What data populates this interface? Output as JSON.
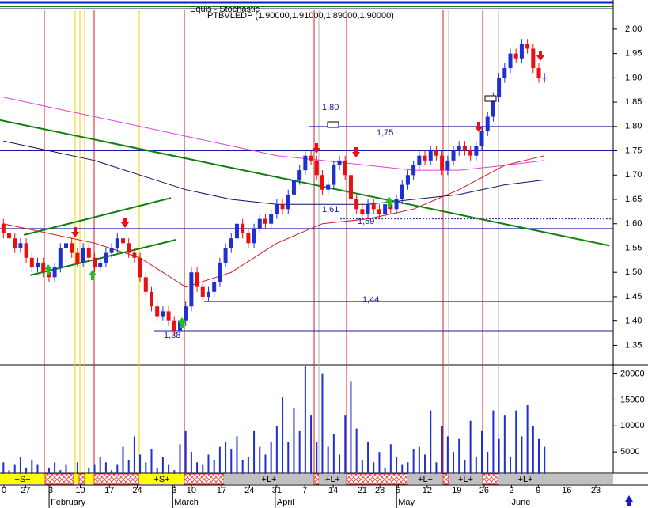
{
  "chart_data": {
    "type": "candlestick",
    "header": "Equis - Stochastic",
    "subtitle": "PTBVLEDP (1.90000,1.91000,1.89000,1.90000)",
    "xlim": [
      -0.6,
      106.5
    ],
    "ylim": [
      1.31,
      2.06
    ],
    "yticks": [
      {
        "value": 2.0,
        "label": "2.00"
      },
      1.95,
      {
        "value": 1.9,
        "label": "1.90"
      },
      1.85,
      {
        "value": 1.8,
        "label": "1.80"
      },
      1.75,
      {
        "value": 1.7,
        "label": "1.70"
      },
      1.65,
      {
        "value": 1.6,
        "label": "1.60"
      },
      1.55,
      {
        "value": 1.5,
        "label": "1.50"
      },
      1.45,
      {
        "value": 1.4,
        "label": "1.40"
      },
      1.35
    ],
    "open": [
      1.6,
      1.58,
      1.57,
      1.55,
      1.56,
      1.53,
      1.51,
      1.52,
      1.5,
      1.49,
      1.51,
      1.55,
      1.56,
      1.54,
      1.52,
      1.55,
      1.53,
      1.51,
      1.52,
      1.54,
      1.55,
      1.57,
      1.56,
      1.54,
      1.53,
      1.49,
      1.46,
      1.43,
      1.41,
      1.42,
      1.4,
      1.38,
      1.4,
      1.43,
      1.5,
      1.47,
      1.45,
      1.46,
      1.48,
      1.52,
      1.55,
      1.57,
      1.6,
      1.58,
      1.56,
      1.59,
      1.61,
      1.6,
      1.62,
      1.64,
      1.63,
      1.66,
      1.69,
      1.71,
      1.74,
      1.73,
      1.7,
      1.67,
      1.68,
      1.72,
      1.73,
      1.7,
      1.65,
      1.63,
      1.62,
      1.64,
      1.63,
      1.62,
      1.64,
      1.63,
      1.65,
      1.68,
      1.7,
      1.72,
      1.74,
      1.73,
      1.75,
      1.74,
      1.71,
      1.73,
      1.75,
      1.76,
      1.75,
      1.74,
      1.76,
      1.79,
      1.82,
      1.86,
      1.9,
      1.92,
      1.95,
      1.94,
      1.97,
      1.96,
      1.92,
      1.9
    ],
    "high": [
      1.61,
      1.59,
      1.58,
      1.57,
      1.57,
      1.54,
      1.53,
      1.53,
      1.51,
      1.52,
      1.56,
      1.57,
      1.57,
      1.55,
      1.56,
      1.56,
      1.54,
      1.53,
      1.55,
      1.56,
      1.58,
      1.58,
      1.57,
      1.55,
      1.54,
      1.5,
      1.47,
      1.44,
      1.43,
      1.43,
      1.41,
      1.41,
      1.44,
      1.51,
      1.51,
      1.48,
      1.47,
      1.49,
      1.53,
      1.56,
      1.58,
      1.61,
      1.61,
      1.59,
      1.6,
      1.62,
      1.62,
      1.63,
      1.65,
      1.65,
      1.67,
      1.7,
      1.72,
      1.75,
      1.75,
      1.74,
      1.71,
      1.69,
      1.73,
      1.74,
      1.74,
      1.71,
      1.66,
      1.64,
      1.65,
      1.65,
      1.64,
      1.65,
      1.65,
      1.66,
      1.69,
      1.71,
      1.73,
      1.75,
      1.75,
      1.76,
      1.76,
      1.75,
      1.74,
      1.76,
      1.77,
      1.77,
      1.76,
      1.77,
      1.8,
      1.83,
      1.87,
      1.91,
      1.93,
      1.96,
      1.96,
      1.98,
      1.98,
      1.97,
      1.93,
      1.91
    ],
    "low": [
      1.57,
      1.56,
      1.54,
      1.54,
      1.52,
      1.5,
      1.5,
      1.49,
      1.48,
      1.48,
      1.5,
      1.54,
      1.53,
      1.51,
      1.51,
      1.52,
      1.5,
      1.5,
      1.51,
      1.53,
      1.54,
      1.55,
      1.53,
      1.52,
      1.48,
      1.45,
      1.42,
      1.4,
      1.4,
      1.39,
      1.37,
      1.37,
      1.39,
      1.42,
      1.46,
      1.44,
      1.44,
      1.45,
      1.47,
      1.51,
      1.54,
      1.56,
      1.57,
      1.55,
      1.55,
      1.58,
      1.59,
      1.59,
      1.61,
      1.62,
      1.62,
      1.65,
      1.68,
      1.7,
      1.72,
      1.69,
      1.66,
      1.66,
      1.67,
      1.71,
      1.69,
      1.64,
      1.62,
      1.61,
      1.61,
      1.62,
      1.61,
      1.61,
      1.62,
      1.62,
      1.64,
      1.67,
      1.69,
      1.71,
      1.72,
      1.72,
      1.73,
      1.7,
      1.7,
      1.72,
      1.74,
      1.74,
      1.73,
      1.73,
      1.75,
      1.78,
      1.81,
      1.85,
      1.89,
      1.91,
      1.93,
      1.93,
      1.95,
      1.91,
      1.89,
      1.89
    ],
    "close": [
      1.58,
      1.57,
      1.55,
      1.56,
      1.53,
      1.51,
      1.52,
      1.5,
      1.49,
      1.51,
      1.55,
      1.56,
      1.54,
      1.52,
      1.55,
      1.53,
      1.51,
      1.52,
      1.54,
      1.55,
      1.57,
      1.56,
      1.54,
      1.53,
      1.49,
      1.46,
      1.43,
      1.41,
      1.42,
      1.4,
      1.38,
      1.4,
      1.43,
      1.5,
      1.47,
      1.45,
      1.46,
      1.48,
      1.52,
      1.55,
      1.57,
      1.6,
      1.58,
      1.56,
      1.59,
      1.61,
      1.6,
      1.62,
      1.64,
      1.63,
      1.66,
      1.69,
      1.71,
      1.74,
      1.73,
      1.7,
      1.67,
      1.68,
      1.72,
      1.73,
      1.7,
      1.65,
      1.63,
      1.62,
      1.64,
      1.63,
      1.62,
      1.64,
      1.63,
      1.65,
      1.68,
      1.7,
      1.72,
      1.74,
      1.73,
      1.75,
      1.74,
      1.71,
      1.73,
      1.75,
      1.76,
      1.75,
      1.74,
      1.76,
      1.79,
      1.82,
      1.86,
      1.9,
      1.92,
      1.95,
      1.94,
      1.97,
      1.96,
      1.92,
      1.9,
      1.9
    ],
    "up_color": "#1f2fd0",
    "down_color": "#e81010",
    "moving_averages": [
      {
        "color": "#e040e0",
        "x": [
          0,
          8,
          16,
          24,
          32,
          40,
          48,
          56,
          64,
          72,
          80,
          88,
          95
        ],
        "values": [
          1.86,
          1.84,
          1.82,
          1.8,
          1.78,
          1.76,
          1.74,
          1.73,
          1.72,
          1.71,
          1.71,
          1.72,
          1.73
        ]
      },
      {
        "color": "#101060",
        "x": [
          0,
          8,
          16,
          24,
          32,
          40,
          48,
          56,
          64,
          72,
          80,
          88,
          95
        ],
        "values": [
          1.77,
          1.75,
          1.73,
          1.7,
          1.67,
          1.65,
          1.64,
          1.64,
          1.64,
          1.65,
          1.66,
          1.68,
          1.69
        ]
      },
      {
        "color": "#d01818",
        "x": [
          0,
          8,
          16,
          24,
          32,
          40,
          48,
          56,
          64,
          72,
          80,
          88,
          95
        ],
        "values": [
          1.6,
          1.58,
          1.56,
          1.53,
          1.47,
          1.5,
          1.56,
          1.6,
          1.61,
          1.63,
          1.67,
          1.72,
          1.74
        ]
      }
    ],
    "trendlines": [
      {
        "color": "#108010",
        "x": [
          -0.6,
          106.4
        ],
        "values": [
          1.813,
          1.555
        ]
      },
      {
        "color": "#108010",
        "x": [
          3.6,
          29.4
        ],
        "values": [
          1.577,
          1.653
        ]
      },
      {
        "color": "#108010",
        "x": [
          4.7,
          30.3
        ],
        "values": [
          1.494,
          1.567
        ]
      }
    ],
    "levels": [
      {
        "value": 1.8,
        "label": "1,80"
      },
      {
        "value": 1.75,
        "label": "1,75"
      },
      {
        "value": 1.61,
        "label": "1,61"
      },
      {
        "value": 1.59,
        "label": "1,59"
      },
      {
        "value": 1.44,
        "label": "1,44"
      },
      {
        "value": 1.38,
        "label": "1,38"
      }
    ],
    "volume": [
      3000,
      1500,
      2500,
      4000,
      2000,
      3500,
      2500,
      1000,
      2000,
      3000,
      1500,
      2500,
      1000,
      3000,
      500,
      2000,
      2500,
      4000,
      3000,
      1500,
      2500,
      6000,
      3500,
      8000,
      4500,
      3000,
      5500,
      2000,
      4000,
      2500,
      1500,
      6500,
      9000,
      5000,
      3000,
      2500,
      4500,
      3500,
      6000,
      7000,
      5500,
      8000,
      3500,
      4000,
      9000,
      6000,
      4500,
      7000,
      10000,
      15500,
      7000,
      13500,
      9000,
      21500,
      12000,
      7000,
      20000,
      6000,
      8500,
      4500,
      12000,
      18500,
      9500,
      3500,
      7000,
      3000,
      5000,
      2000,
      6500,
      4000,
      2500,
      3000,
      5500,
      6000,
      4500,
      13000,
      3000,
      10000,
      8000,
      5000,
      7500,
      3500,
      11000,
      4000,
      9000,
      5000,
      13000,
      7500,
      12000,
      4000,
      13000,
      8000,
      14000,
      10000,
      7500,
      6000
    ],
    "volume_color": "#1f2fd0",
    "volume_ylim": [
      0,
      21000
    ],
    "volume_yticks": [
      20000,
      15000,
      10000,
      5000
    ],
    "xticks": [
      {
        "value": 0.1,
        "label": "0"
      },
      {
        "value": 3.9,
        "label": "27"
      },
      {
        "value": 8.3,
        "label": "3"
      },
      {
        "value": 13.5,
        "label": "10"
      },
      {
        "value": 18.6,
        "label": "17"
      },
      {
        "value": 23.5,
        "label": "24"
      },
      {
        "value": 30,
        "label": "3"
      },
      {
        "value": 33,
        "label": "10"
      },
      {
        "value": 38.3,
        "label": "17"
      },
      {
        "value": 43.2,
        "label": "24"
      },
      {
        "value": 48,
        "label": "31"
      },
      {
        "value": 52.9,
        "label": "7"
      },
      {
        "value": 57.9,
        "label": "14"
      },
      {
        "value": 63,
        "label": "21"
      },
      {
        "value": 66.1,
        "label": "28"
      },
      {
        "value": 69.3,
        "label": "5"
      },
      {
        "value": 74.4,
        "label": "12"
      },
      {
        "value": 79.6,
        "label": "19"
      },
      {
        "value": 84.4,
        "label": "26"
      },
      {
        "value": 89.2,
        "label": "2"
      },
      {
        "value": 93.9,
        "label": "9"
      },
      {
        "value": 98.9,
        "label": "16"
      },
      {
        "value": 104,
        "label": "23"
      }
    ],
    "months": [
      {
        "value": 8.3,
        "label": "February"
      },
      {
        "value": 30,
        "label": "March"
      },
      {
        "value": 48,
        "label": "April"
      },
      {
        "value": 69.3,
        "label": "May"
      },
      {
        "value": 89.2,
        "label": "June"
      }
    ],
    "signals": [
      "+S+",
      "+S+",
      "+L+",
      "+L+",
      "+L+",
      "+L+",
      "+L+"
    ]
  }
}
